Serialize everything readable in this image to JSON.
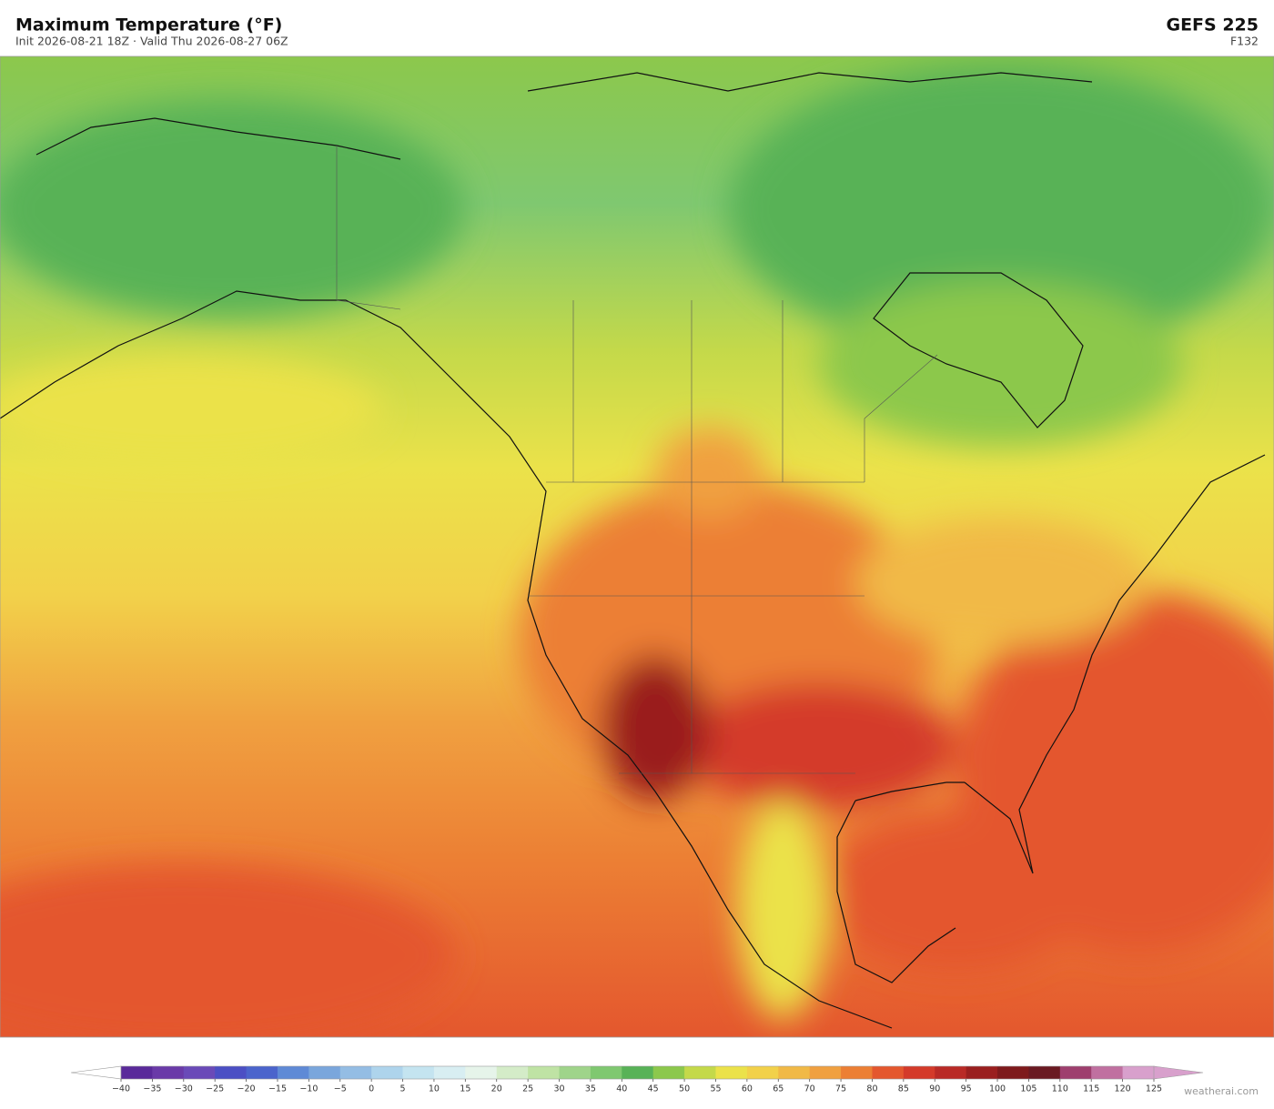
{
  "header": {
    "title": "Maximum Temperature  (°F)",
    "subtitle": "Init 2026-08-21 18Z   ·   Valid Thu 2026-08-27 06Z",
    "model": "GEFS  225",
    "forecast_hour": "F132"
  },
  "colorbar": {
    "ticks": [
      {
        "value": -40,
        "label": "−40"
      },
      {
        "value": -35,
        "label": "−35"
      },
      {
        "value": -30,
        "label": "−30"
      },
      {
        "value": -25,
        "label": "−25"
      },
      {
        "value": -20,
        "label": "−20"
      },
      {
        "value": -15,
        "label": "−15"
      },
      {
        "value": -10,
        "label": "−10"
      },
      {
        "value": -5,
        "label": "−5"
      },
      0,
      5,
      10,
      15,
      20,
      25,
      30,
      35,
      40,
      45,
      50,
      55,
      60,
      65,
      70,
      75,
      80,
      85,
      90,
      95,
      100,
      105,
      110,
      115,
      120,
      125
    ],
    "colors": [
      "#5a2a9a",
      "#6a3aa8",
      "#6a4ab8",
      "#4b4fc4",
      "#4b64cc",
      "#5f8ad6",
      "#7aa6dc",
      "#94bde4",
      "#aed4ec",
      "#c4e4f0",
      "#d8eef2",
      "#e6f4ea",
      "#d4ecc8",
      "#bfe3a4",
      "#9fd48a",
      "#7fc870",
      "#58b257",
      "#8cc84c",
      "#c4d94a",
      "#ebe24a",
      "#f2d14a",
      "#f1b946",
      "#f0a040",
      "#ec7f34",
      "#e4572e",
      "#d43a2a",
      "#b92a26",
      "#9a1f1f",
      "#7e1a1c",
      "#6a1a22",
      "#9e3f6e",
      "#c070a0",
      "#d8a0cc"
    ]
  },
  "credit": "weatherai.com"
}
